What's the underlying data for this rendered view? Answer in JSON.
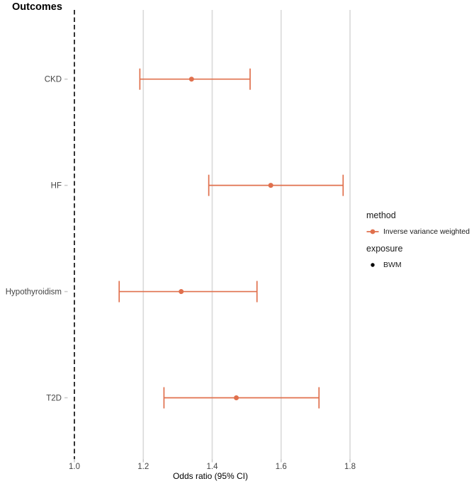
{
  "title": "Outcomes",
  "axis": {
    "x_label": "Odds ratio (95% CI)"
  },
  "legend": {
    "method": {
      "title": "method",
      "items": [
        {
          "label": "Inverse variance weighted",
          "symbol": "errorbar-point",
          "color": "#E0704D"
        }
      ]
    },
    "exposure": {
      "title": "exposure",
      "items": [
        {
          "label": "BWM",
          "symbol": "point",
          "color": "#000000"
        }
      ]
    }
  },
  "colors": {
    "accent": "#E0704D",
    "gridline": "#DBDBDB",
    "tick": "#C9C9C9",
    "axis_text": "#444444",
    "text": "#000000",
    "reference_line": "#1F1F1F"
  },
  "chart_data": {
    "type": "scatter",
    "subtype": "forest-plot",
    "title": "Outcomes",
    "xlabel": "Odds ratio (95% CI)",
    "ylabel": "",
    "orientation": "horizontal",
    "xlim": [
      0.99,
      1.84
    ],
    "x_ticks": [
      1.0,
      1.2,
      1.4,
      1.6,
      1.8
    ],
    "x_tick_labels": [
      "1.0",
      "1.2",
      "1.4",
      "1.6",
      "1.8"
    ],
    "grid": "vertical-major-only",
    "legend_position": "right",
    "reference_line_x": 1.0,
    "categories": [
      "CKD",
      "HF",
      "Hypothyroidism",
      "T2D"
    ],
    "series": [
      {
        "name": "Inverse variance weighted",
        "exposure": "BWM",
        "points": [
          {
            "outcome": "CKD",
            "or": 1.34,
            "ci_low": 1.19,
            "ci_high": 1.51
          },
          {
            "outcome": "HF",
            "or": 1.57,
            "ci_low": 1.39,
            "ci_high": 1.78
          },
          {
            "outcome": "Hypothyroidism",
            "or": 1.31,
            "ci_low": 1.13,
            "ci_high": 1.53
          },
          {
            "outcome": "T2D",
            "or": 1.47,
            "ci_low": 1.26,
            "ci_high": 1.71
          }
        ]
      }
    ]
  }
}
